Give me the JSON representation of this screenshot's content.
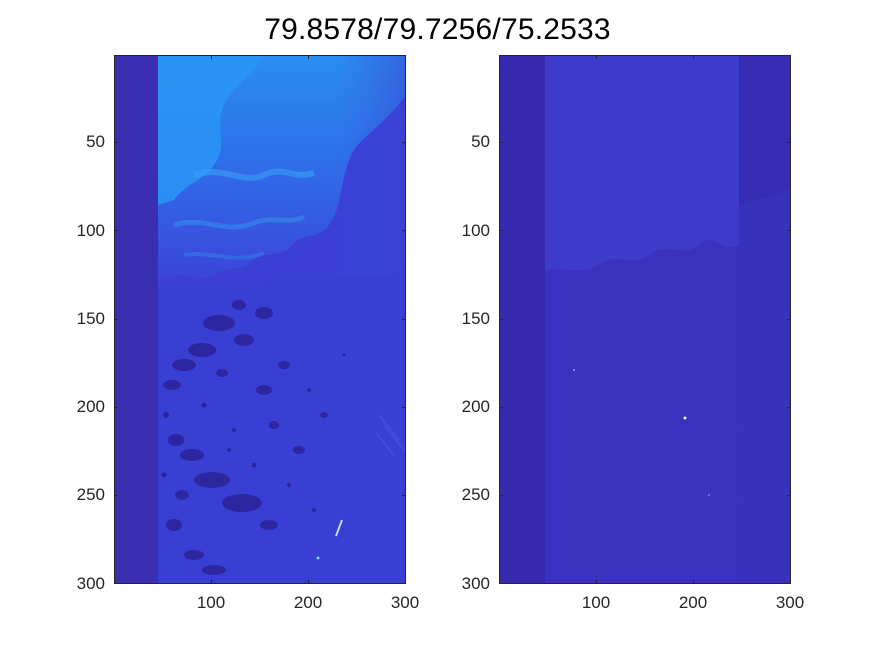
{
  "figure": {
    "title": "79.8578/79.7256/75.2533"
  },
  "panels": [
    {
      "id": "left",
      "y_ticks": [
        "50",
        "100",
        "150",
        "200",
        "250",
        "300"
      ],
      "x_ticks": [
        "100",
        "200",
        "300"
      ],
      "colors": {
        "strip": "#3a2fb0",
        "base": "#3b3fd6",
        "bright": "#2a86f0",
        "dark_patches": "#2d26a0"
      }
    },
    {
      "id": "right",
      "y_ticks": [
        "50",
        "100",
        "150",
        "200",
        "250",
        "300"
      ],
      "x_ticks": [
        "100",
        "200",
        "300"
      ],
      "colors": {
        "strip": "#3629ae",
        "base": "#3a31c0",
        "light": "#3d3dcb"
      }
    }
  ]
}
